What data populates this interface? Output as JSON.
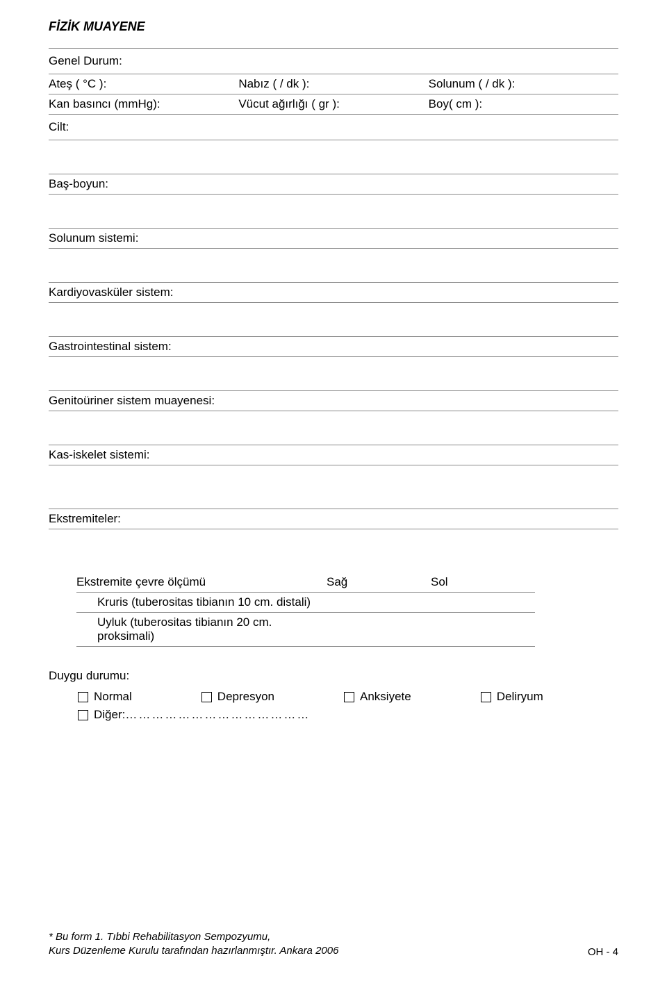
{
  "title": "FİZİK MUAYENE",
  "vitals": {
    "genel_durum": "Genel Durum:",
    "ates": "Ateş ( °C ):",
    "nabiz": "Nabız ( / dk ):",
    "solunum": "Solunum ( / dk ):",
    "kan_basinci": "Kan basıncı (mmHg):",
    "vucut_agirligi": "Vücut ağırlığı ( gr ):",
    "boy": "Boy( cm ):",
    "cilt": "Cilt:"
  },
  "sections": {
    "bas_boyun": "Baş-boyun:",
    "solunum_sistemi": "Solunum sistemi:",
    "kardiyovaskuler": "Kardiyovasküler sistem:",
    "gastrointestinal": "Gastrointestinal sistem:",
    "genitouriner": "Genitoüriner sistem muayenesi:",
    "kas_iskelet": "Kas-iskelet sistemi:",
    "ekstremiteler": "Ekstremiteler:"
  },
  "ext_table": {
    "header_label": "Ekstremite çevre ölçümü",
    "header_sag": "Sağ",
    "header_sol": "Sol",
    "row1": "Kruris (tuberositas tibianın 10 cm. distali)",
    "row2": "Uyluk (tuberositas tibianın 20 cm. proksimali)"
  },
  "duygu": {
    "label": "Duygu durumu:",
    "normal": "Normal",
    "depresyon": "Depresyon",
    "anksiyete": "Anksiyete",
    "deliryum": "Deliryum",
    "diger": "Diğer:",
    "dots": "……………………………………"
  },
  "footer": {
    "line1": "* Bu form 1. Tıbbi Rehabilitasyon Sempozyumu,",
    "line2": "Kurs Düzenleme Kurulu tarafından hazırlanmıştır. Ankara 2006",
    "page": "OH - 4"
  }
}
